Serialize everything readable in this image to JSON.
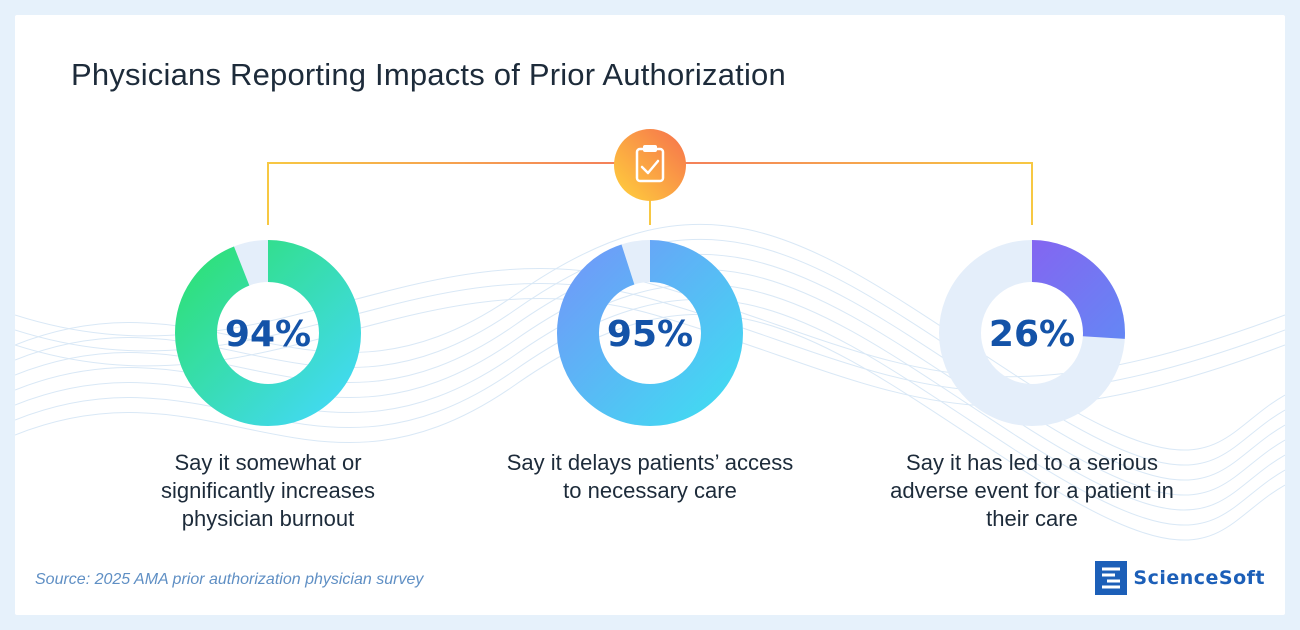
{
  "title": "Physicians Reporting Impacts of Prior Authorization",
  "source": "Source: 2025 AMA prior authorization physician survey",
  "logo_text": "ScienceSoft",
  "icons": {
    "center": "clipboard-check-icon",
    "logo": "sciencesoft-logo-icon"
  },
  "chart_data": [
    {
      "type": "pie",
      "value": 94,
      "label": "94%",
      "caption": "Say it somewhat or significantly increases physician burnout",
      "colors": [
        "#2fe07a",
        "#42d9f2"
      ]
    },
    {
      "type": "pie",
      "value": 95,
      "label": "95%",
      "caption": "Say it delays patients’ access to necessary care",
      "colors": [
        "#6e9cf8",
        "#42d9f2"
      ]
    },
    {
      "type": "pie",
      "value": 26,
      "label": "26%",
      "caption": "Say it has led to a serious adverse event for a patient in their care",
      "colors": [
        "#8c5cf0",
        "#5d8ff5"
      ]
    }
  ]
}
